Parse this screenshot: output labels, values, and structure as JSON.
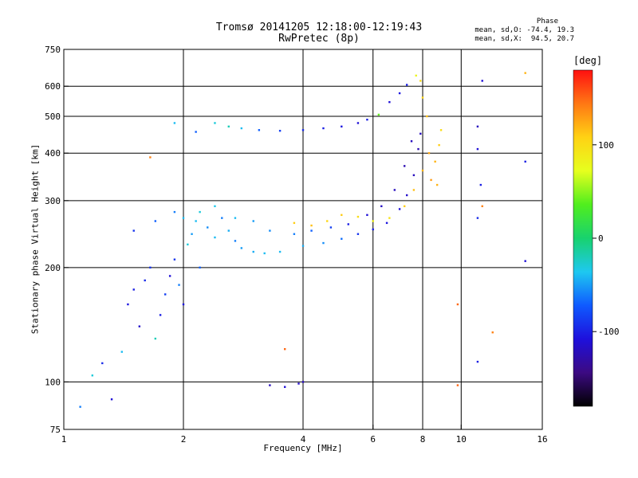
{
  "header": {
    "title_line1": "Tromsø 20141205 12:18:00-12:19:43",
    "title_line2": "RwPretec (8p)",
    "phase_heading": "Phase",
    "phase_line_o": "mean, sd,O: -74.4, 19.3",
    "phase_line_x": "mean, sd,X:  94.5, 20.7"
  },
  "chart_data": {
    "type": "scatter",
    "title": "Tromsø 20141205 12:18:00-12:19:43",
    "subtitle": "RwPretec (8p)",
    "xlabel": "Frequency [MHz]",
    "ylabel": "Stationary phase Virtual Height [km]",
    "x_scale": "log",
    "y_scale": "log",
    "xlim": [
      1,
      16
    ],
    "ylim": [
      75,
      750
    ],
    "x_ticks": [
      1,
      2,
      4,
      6,
      8,
      10,
      16
    ],
    "x_tick_labels": [
      "1",
      "2",
      "4",
      "6",
      "8",
      "10",
      "16"
    ],
    "y_ticks": [
      75,
      100,
      200,
      300,
      400,
      500,
      600,
      750
    ],
    "y_tick_labels": [
      "75",
      "100",
      "200",
      "300",
      "400",
      "500",
      "600",
      "750"
    ],
    "x_gridlines": [
      2,
      4,
      6,
      8,
      10
    ],
    "y_gridlines": [
      100,
      200,
      300,
      400,
      500,
      600
    ],
    "grid": true,
    "colorbar": {
      "label": "[deg]",
      "range": [
        -180,
        180
      ],
      "ticks": [
        100,
        0,
        -100
      ],
      "tick_labels": [
        "100",
        "0",
        "-100"
      ],
      "colors": [
        "#000000",
        "#3c0a82",
        "#1e10dc",
        "#0f5aff",
        "#1ec8f0",
        "#18d26e",
        "#50ee1e",
        "#e6ff1e",
        "#ffd214",
        "#ff7814",
        "#ff1010"
      ]
    },
    "series": [
      {
        "values_are": "[frequency_MHz, virtual_height_km, phase_deg]",
        "points": [
          [
            1.1,
            86,
            -60
          ],
          [
            1.18,
            104,
            -30
          ],
          [
            1.25,
            112,
            -95
          ],
          [
            1.32,
            90,
            -110
          ],
          [
            1.4,
            120,
            -40
          ],
          [
            1.45,
            160,
            -105
          ],
          [
            1.5,
            175,
            -100
          ],
          [
            1.55,
            140,
            -115
          ],
          [
            1.6,
            185,
            -95
          ],
          [
            1.65,
            200,
            -90
          ],
          [
            1.7,
            130,
            -20
          ],
          [
            1.75,
            150,
            -100
          ],
          [
            1.8,
            170,
            -85
          ],
          [
            1.85,
            190,
            -110
          ],
          [
            1.9,
            210,
            -90
          ],
          [
            1.95,
            180,
            -60
          ],
          [
            2.0,
            160,
            -105
          ],
          [
            2.05,
            230,
            -30
          ],
          [
            2.1,
            245,
            -50
          ],
          [
            2.15,
            265,
            -40
          ],
          [
            2.2,
            200,
            -70
          ],
          [
            2.3,
            255,
            -55
          ],
          [
            2.4,
            240,
            -40
          ],
          [
            2.5,
            270,
            -60
          ],
          [
            2.6,
            250,
            -45
          ],
          [
            2.7,
            235,
            -60
          ],
          [
            2.8,
            225,
            -50
          ],
          [
            3.0,
            220,
            -45
          ],
          [
            3.2,
            218,
            -40
          ],
          [
            3.5,
            220,
            -40
          ],
          [
            4.0,
            228,
            -45
          ],
          [
            4.5,
            232,
            -55
          ],
          [
            5.0,
            238,
            -65
          ],
          [
            5.5,
            245,
            -90
          ],
          [
            6.0,
            252,
            -100
          ],
          [
            6.5,
            262,
            -105
          ],
          [
            7.0,
            285,
            -110
          ],
          [
            7.3,
            310,
            -115
          ],
          [
            7.6,
            350,
            -120
          ],
          [
            7.8,
            410,
            -125
          ],
          [
            7.9,
            450,
            -120
          ],
          [
            1.5,
            250,
            -90
          ],
          [
            1.7,
            265,
            -70
          ],
          [
            1.9,
            280,
            -60
          ],
          [
            2.0,
            270,
            -40
          ],
          [
            2.2,
            280,
            -30
          ],
          [
            2.4,
            290,
            -35
          ],
          [
            2.7,
            270,
            -40
          ],
          [
            3.0,
            265,
            -50
          ],
          [
            3.3,
            250,
            -55
          ],
          [
            3.8,
            245,
            -60
          ],
          [
            4.2,
            250,
            -70
          ],
          [
            4.7,
            255,
            -85
          ],
          [
            5.2,
            260,
            -100
          ],
          [
            5.8,
            275,
            -110
          ],
          [
            6.3,
            290,
            -118
          ],
          [
            6.8,
            320,
            -120
          ],
          [
            7.2,
            370,
            -125
          ],
          [
            7.5,
            430,
            -120
          ],
          [
            2.4,
            480,
            -30
          ],
          [
            2.6,
            470,
            -20
          ],
          [
            2.8,
            465,
            -40
          ],
          [
            3.1,
            460,
            -70
          ],
          [
            3.5,
            458,
            -85
          ],
          [
            4.0,
            460,
            -95
          ],
          [
            4.5,
            465,
            -100
          ],
          [
            5.0,
            470,
            -105
          ],
          [
            5.5,
            480,
            -110
          ],
          [
            5.8,
            490,
            -100
          ],
          [
            6.2,
            505,
            40
          ],
          [
            6.6,
            545,
            -110
          ],
          [
            7.0,
            575,
            -105
          ],
          [
            7.3,
            605,
            -100
          ],
          [
            7.7,
            640,
            80
          ],
          [
            7.9,
            620,
            100
          ],
          [
            3.8,
            262,
            110
          ],
          [
            4.2,
            258,
            115
          ],
          [
            4.6,
            265,
            105
          ],
          [
            5.0,
            275,
            110
          ],
          [
            5.5,
            272,
            100
          ],
          [
            6.0,
            265,
            85
          ],
          [
            6.6,
            270,
            95
          ],
          [
            7.2,
            290,
            110
          ],
          [
            7.6,
            320,
            115
          ],
          [
            8.0,
            360,
            120
          ],
          [
            8.3,
            400,
            125
          ],
          [
            8.6,
            380,
            120
          ],
          [
            8.8,
            420,
            110
          ],
          [
            8.9,
            460,
            100
          ],
          [
            8.2,
            500,
            115
          ],
          [
            8.0,
            560,
            105
          ],
          [
            8.4,
            340,
            130
          ],
          [
            8.7,
            330,
            120
          ],
          [
            3.3,
            98,
            -120
          ],
          [
            3.6,
            97,
            -110
          ],
          [
            3.9,
            99,
            -115
          ],
          [
            4.0,
            100,
            -120
          ],
          [
            3.6,
            122,
            150
          ],
          [
            9.8,
            98,
            150
          ],
          [
            9.8,
            160,
            150
          ],
          [
            11.0,
            270,
            -95
          ],
          [
            11.0,
            410,
            -110
          ],
          [
            11.0,
            470,
            -120
          ],
          [
            11.3,
            290,
            140
          ],
          [
            11.3,
            620,
            -110
          ],
          [
            11.2,
            330,
            -100
          ],
          [
            11.0,
            113,
            -100
          ],
          [
            12.0,
            135,
            140
          ],
          [
            14.5,
            208,
            -110
          ],
          [
            14.5,
            380,
            -100
          ],
          [
            14.5,
            650,
            120
          ],
          [
            1.65,
            390,
            140
          ],
          [
            1.9,
            480,
            -40
          ],
          [
            2.15,
            455,
            -70
          ]
        ]
      }
    ]
  }
}
